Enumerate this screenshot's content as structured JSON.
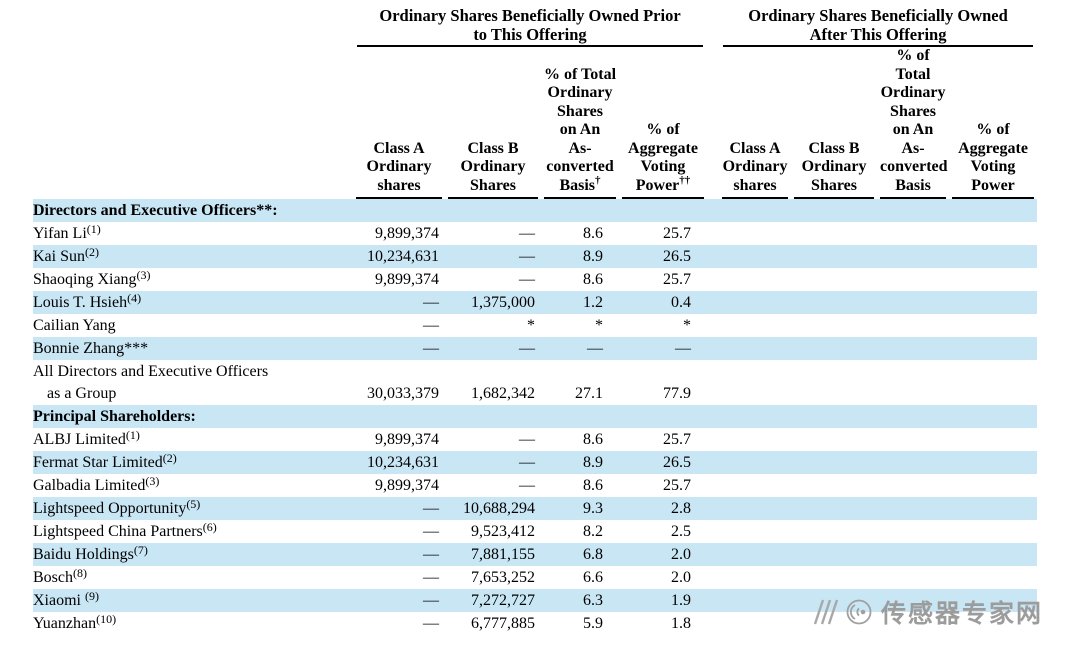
{
  "colors": {
    "stripe": "#c9e6f5",
    "watermark": "#9c9c9c",
    "text": "#000000"
  },
  "table": {
    "group_headers": [
      {
        "label": "Ordinary Shares Beneficially Owned Prior\nto This Offering"
      },
      {
        "label": "Ordinary Shares Beneficially Owned\nAfter This Offering"
      }
    ],
    "columns": [
      {
        "label": "Class A\nOrdinary\nshares",
        "sup": ""
      },
      {
        "label": "Class B\nOrdinary\nShares",
        "sup": ""
      },
      {
        "label": "% of Total\nOrdinary\nShares\non An\nAs-\nconverted\nBasis",
        "sup": "†"
      },
      {
        "label": "% of\nAggregate\nVoting\nPower",
        "sup": "††"
      },
      {
        "label": "Class A\nOrdinary\nshares",
        "sup": ""
      },
      {
        "label": "Class B\nOrdinary\nShares",
        "sup": ""
      },
      {
        "label": "% of\nTotal\nOrdinary\nShares\non An\nAs-\nconverted\nBasis",
        "sup": ""
      },
      {
        "label": "% of\nAggregate\nVoting\nPower",
        "sup": ""
      }
    ],
    "rows": [
      {
        "type": "section",
        "name": "Directors and Executive Officers**:",
        "sup": "",
        "cells": [
          "",
          "",
          "",
          "",
          "",
          "",
          "",
          ""
        ]
      },
      {
        "type": "data",
        "name": "Yifan Li",
        "sup": "(1)",
        "cells": [
          "9,899,374",
          "—",
          "8.6",
          "25.7",
          "",
          "",
          "",
          ""
        ]
      },
      {
        "type": "data",
        "name": "Kai Sun",
        "sup": "(2)",
        "cells": [
          "10,234,631",
          "—",
          "8.9",
          "26.5",
          "",
          "",
          "",
          ""
        ]
      },
      {
        "type": "data",
        "name": "Shaoqing Xiang",
        "sup": "(3)",
        "cells": [
          "9,899,374",
          "—",
          "8.6",
          "25.7",
          "",
          "",
          "",
          ""
        ]
      },
      {
        "type": "data",
        "name": "Louis T. Hsieh",
        "sup": "(4)",
        "cells": [
          "—",
          "1,375,000",
          "1.2",
          "0.4",
          "",
          "",
          "",
          ""
        ]
      },
      {
        "type": "data",
        "name": "Cailian Yang",
        "sup": "",
        "cells": [
          "—",
          "*",
          "*",
          "*",
          "",
          "",
          "",
          ""
        ]
      },
      {
        "type": "data",
        "name": "Bonnie Zhang***",
        "sup": "",
        "cells": [
          "—",
          "—",
          "—",
          "—",
          "",
          "",
          "",
          ""
        ]
      },
      {
        "type": "data",
        "name": "All Directors and Executive Officers\nas a Group",
        "sup": "",
        "cells": [
          "30,033,379",
          "1,682,342",
          "27.1",
          "77.9",
          "",
          "",
          "",
          ""
        ]
      },
      {
        "type": "section",
        "name": "Principal Shareholders:",
        "sup": "",
        "cells": [
          "",
          "",
          "",
          "",
          "",
          "",
          "",
          ""
        ]
      },
      {
        "type": "data",
        "name": "ALBJ Limited",
        "sup": "(1)",
        "cells": [
          "9,899,374",
          "—",
          "8.6",
          "25.7",
          "",
          "",
          "",
          ""
        ]
      },
      {
        "type": "data",
        "name": "Fermat Star Limited",
        "sup": "(2)",
        "cells": [
          "10,234,631",
          "—",
          "8.9",
          "26.5",
          "",
          "",
          "",
          ""
        ]
      },
      {
        "type": "data",
        "name": "Galbadia Limited",
        "sup": "(3)",
        "cells": [
          "9,899,374",
          "—",
          "8.6",
          "25.7",
          "",
          "",
          "",
          ""
        ]
      },
      {
        "type": "data",
        "name": "Lightspeed Opportunity",
        "sup": "(5)",
        "cells": [
          "—",
          "10,688,294",
          "9.3",
          "2.8",
          "",
          "",
          "",
          ""
        ]
      },
      {
        "type": "data",
        "name": "Lightspeed China Partners",
        "sup": "(6)",
        "cells": [
          "—",
          "9,523,412",
          "8.2",
          "2.5",
          "",
          "",
          "",
          ""
        ]
      },
      {
        "type": "data",
        "name": "Baidu Holdings",
        "sup": "(7)",
        "cells": [
          "—",
          "7,881,155",
          "6.8",
          "2.0",
          "",
          "",
          "",
          ""
        ]
      },
      {
        "type": "data",
        "name": "Bosch",
        "sup": "(8)",
        "cells": [
          "—",
          "7,653,252",
          "6.6",
          "2.0",
          "",
          "",
          "",
          ""
        ]
      },
      {
        "type": "data",
        "name": "Xiaomi ",
        "sup": "(9)",
        "cells": [
          "—",
          "7,272,727",
          "6.3",
          "1.9",
          "",
          "",
          "",
          ""
        ]
      },
      {
        "type": "data",
        "name": "Yuanzhan",
        "sup": "(10)",
        "cells": [
          "—",
          "6,777,885",
          "5.9",
          "1.8",
          "",
          "",
          "",
          ""
        ]
      }
    ]
  },
  "watermark": {
    "text": "传感器专家网"
  }
}
